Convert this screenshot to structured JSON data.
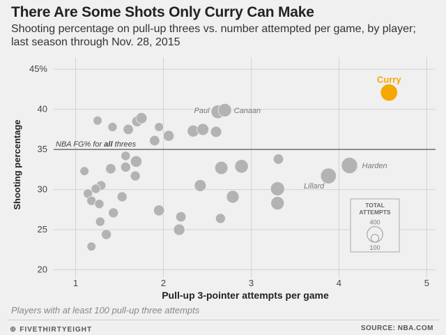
{
  "header": {
    "title": "There Are Some Shots Only Curry Can Make",
    "subtitle": "Shooting percentage on pull-up threes vs. number attempted per game, by player; last season through Nov. 28, 2015"
  },
  "footnote": "Players with at least 100 pull-up three attempts",
  "footer": {
    "brand": "FIVETHIRTYEIGHT",
    "source": "SOURCE: NBA.COM"
  },
  "colors": {
    "background": "#f0f0f0",
    "bubble": "#b3b3b3",
    "highlight": "#f5a800",
    "grid": "#d2d2d2",
    "reference_line": "#555555"
  },
  "chart_data": {
    "type": "scatter",
    "xlabel": "Pull-up 3-pointer attempts per game",
    "ylabel": "Shooting percentage",
    "xlim": [
      0.75,
      5.1
    ],
    "ylim": [
      19,
      46.5
    ],
    "x_ticks": [
      1,
      2,
      3,
      4,
      5
    ],
    "y_ticks": [
      20,
      25,
      30,
      35,
      40,
      45
    ],
    "y_tick_labels": [
      "20",
      "25",
      "30",
      "35",
      "40",
      "45%"
    ],
    "grid": true,
    "reference_line": {
      "y": 35,
      "label_prefix": "NBA FG% for ",
      "label_bold": "all",
      "label_suffix": " threes"
    },
    "size_legend": {
      "title": [
        "TOTAL",
        "ATTEMPTS"
      ],
      "values": [
        400,
        100
      ],
      "placement": "bottom-right"
    },
    "points": [
      {
        "x": 4.57,
        "y": 42.1,
        "attempts": 480,
        "label": "Curry",
        "highlight": true
      },
      {
        "x": 4.12,
        "y": 33.0,
        "attempts": 430,
        "label": "Harden"
      },
      {
        "x": 3.88,
        "y": 31.7,
        "attempts": 400,
        "label": "Lillard"
      },
      {
        "x": 2.62,
        "y": 39.7,
        "attempts": 300,
        "label": "Paul"
      },
      {
        "x": 2.7,
        "y": 39.9,
        "attempts": 290,
        "label": "Canaan"
      },
      {
        "x": 1.25,
        "y": 38.6,
        "attempts": 130
      },
      {
        "x": 1.42,
        "y": 37.8,
        "attempts": 140
      },
      {
        "x": 1.6,
        "y": 37.5,
        "attempts": 170
      },
      {
        "x": 1.7,
        "y": 38.5,
        "attempts": 180
      },
      {
        "x": 1.75,
        "y": 38.9,
        "attempts": 200
      },
      {
        "x": 1.95,
        "y": 37.8,
        "attempts": 130
      },
      {
        "x": 2.06,
        "y": 36.7,
        "attempts": 190
      },
      {
        "x": 1.9,
        "y": 36.1,
        "attempts": 170
      },
      {
        "x": 2.34,
        "y": 37.3,
        "attempts": 230
      },
      {
        "x": 2.45,
        "y": 37.5,
        "attempts": 230
      },
      {
        "x": 2.6,
        "y": 37.2,
        "attempts": 200
      },
      {
        "x": 1.57,
        "y": 34.2,
        "attempts": 140
      },
      {
        "x": 1.69,
        "y": 33.5,
        "attempts": 210
      },
      {
        "x": 1.57,
        "y": 32.8,
        "attempts": 160
      },
      {
        "x": 1.4,
        "y": 32.6,
        "attempts": 170
      },
      {
        "x": 1.1,
        "y": 32.3,
        "attempts": 130
      },
      {
        "x": 1.68,
        "y": 31.7,
        "attempts": 160
      },
      {
        "x": 2.66,
        "y": 32.7,
        "attempts": 280
      },
      {
        "x": 2.89,
        "y": 32.9,
        "attempts": 300
      },
      {
        "x": 3.31,
        "y": 33.8,
        "attempts": 170
      },
      {
        "x": 1.29,
        "y": 30.5,
        "attempts": 150
      },
      {
        "x": 1.23,
        "y": 30.1,
        "attempts": 140
      },
      {
        "x": 1.14,
        "y": 29.5,
        "attempts": 140
      },
      {
        "x": 1.18,
        "y": 28.6,
        "attempts": 140
      },
      {
        "x": 1.27,
        "y": 28.2,
        "attempts": 140
      },
      {
        "x": 1.53,
        "y": 29.1,
        "attempts": 160
      },
      {
        "x": 2.42,
        "y": 30.5,
        "attempts": 230
      },
      {
        "x": 2.79,
        "y": 29.1,
        "attempts": 260
      },
      {
        "x": 3.3,
        "y": 30.1,
        "attempts": 320
      },
      {
        "x": 3.3,
        "y": 28.3,
        "attempts": 290
      },
      {
        "x": 1.95,
        "y": 27.4,
        "attempts": 190
      },
      {
        "x": 1.43,
        "y": 27.1,
        "attempts": 160
      },
      {
        "x": 1.28,
        "y": 26.0,
        "attempts": 140
      },
      {
        "x": 2.2,
        "y": 26.6,
        "attempts": 170
      },
      {
        "x": 2.65,
        "y": 26.4,
        "attempts": 160
      },
      {
        "x": 2.18,
        "y": 25.0,
        "attempts": 210
      },
      {
        "x": 1.35,
        "y": 24.4,
        "attempts": 160
      },
      {
        "x": 1.18,
        "y": 22.9,
        "attempts": 130
      }
    ]
  }
}
